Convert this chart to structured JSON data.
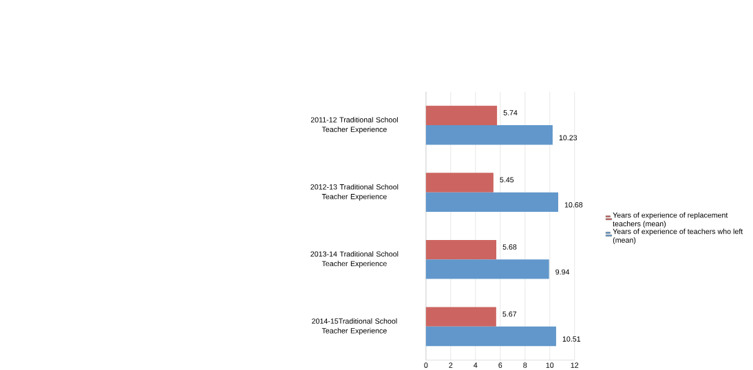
{
  "chart_data": {
    "type": "bar",
    "orientation": "horizontal",
    "categories": [
      "2011-12 Traditional School Teacher Experience",
      "2012-13 Traditional School Teacher Experience",
      "2013-14 Traditional School Teacher Experience",
      "2014-15Traditional School Teacher Experience"
    ],
    "series": [
      {
        "name": "Years of experience of replacement teachers (mean)",
        "color": "#cc6561",
        "values": [
          5.74,
          5.45,
          5.68,
          5.67
        ]
      },
      {
        "name": "Years of experience of teachers who left (mean)",
        "color": "#6197cb",
        "values": [
          10.23,
          10.68,
          9.94,
          10.51
        ]
      }
    ],
    "xlim": [
      0,
      12
    ],
    "xticks": [
      0,
      2,
      4,
      6,
      8,
      10,
      12
    ],
    "grid": "x",
    "legend": "right",
    "data_labels": true
  }
}
